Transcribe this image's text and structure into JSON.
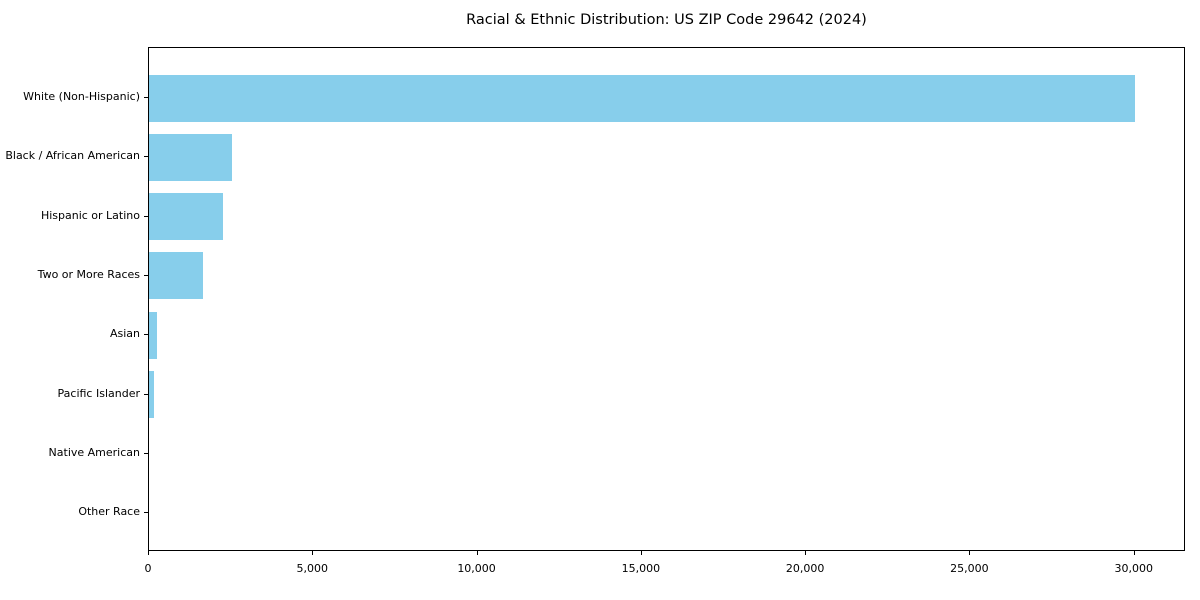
{
  "chart_data": {
    "type": "bar",
    "orientation": "horizontal",
    "title": "Racial & Ethnic Distribution: US ZIP Code 29642 (2024)",
    "categories": [
      "White (Non-Hispanic)",
      "Black / African American",
      "Hispanic or Latino",
      "Two or More Races",
      "Asian",
      "Pacific Islander",
      "Native American",
      "Other Race"
    ],
    "values": [
      30000,
      2540,
      2260,
      1630,
      230,
      140,
      0,
      0
    ],
    "xlabel": "",
    "ylabel": "",
    "xlim": [
      0,
      31500
    ],
    "x_ticks": [
      0,
      5000,
      10000,
      15000,
      20000,
      25000,
      30000
    ],
    "x_tick_labels": [
      "0",
      "5,000",
      "10,000",
      "15,000",
      "20,000",
      "25,000",
      "30,000"
    ],
    "grid": false,
    "legend": "none",
    "bar_color": "#87CEEB",
    "background_color": "#ffffff",
    "spine_color": "#000000"
  }
}
